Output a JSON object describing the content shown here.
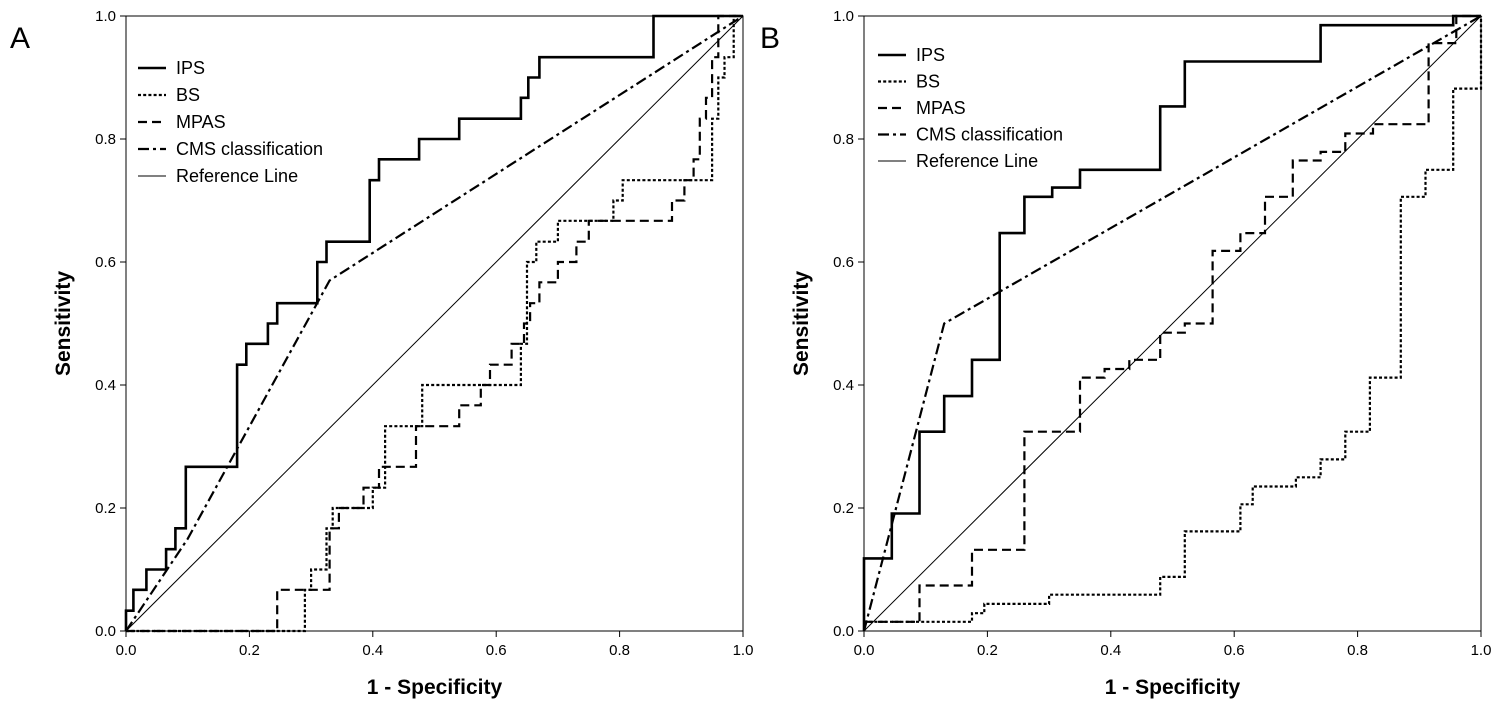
{
  "chart_data": [
    {
      "type": "line",
      "panel_label": "A",
      "xlabel": "1 - Specificity",
      "ylabel": "Sensitivity",
      "xlim": [
        0,
        1
      ],
      "ylim": [
        0,
        1
      ],
      "xticks": [
        "0.0",
        "0.2",
        "0.4",
        "0.6",
        "0.8",
        "1.0"
      ],
      "yticks": [
        "0.0",
        "0.2",
        "0.4",
        "0.6",
        "0.8",
        "1.0"
      ],
      "grid": false,
      "legend_position": "top-left",
      "series": [
        {
          "name": "IPS",
          "style": "solid-thick",
          "x": [
            0,
            0,
            0.012,
            0.012,
            0.033,
            0.033,
            0.065,
            0.065,
            0.08,
            0.08,
            0.097,
            0.097,
            0.18,
            0.18,
            0.195,
            0.195,
            0.23,
            0.23,
            0.245,
            0.245,
            0.31,
            0.31,
            0.325,
            0.325,
            0.395,
            0.395,
            0.41,
            0.41,
            0.475,
            0.475,
            0.54,
            0.54,
            0.64,
            0.64,
            0.652,
            0.652,
            0.67,
            0.67,
            0.855,
            0.855,
            1
          ],
          "y": [
            0,
            0.033,
            0.033,
            0.067,
            0.067,
            0.1,
            0.1,
            0.133,
            0.133,
            0.167,
            0.167,
            0.267,
            0.267,
            0.433,
            0.433,
            0.467,
            0.467,
            0.5,
            0.5,
            0.533,
            0.533,
            0.6,
            0.6,
            0.633,
            0.633,
            0.733,
            0.733,
            0.767,
            0.767,
            0.8,
            0.8,
            0.833,
            0.833,
            0.867,
            0.867,
            0.9,
            0.9,
            0.933,
            0.933,
            1,
            1
          ]
        },
        {
          "name": "BS",
          "style": "dotted",
          "x": [
            0,
            0.29,
            0.29,
            0.3,
            0.3,
            0.325,
            0.325,
            0.335,
            0.335,
            0.4,
            0.4,
            0.42,
            0.42,
            0.48,
            0.48,
            0.64,
            0.64,
            0.65,
            0.65,
            0.665,
            0.665,
            0.7,
            0.7,
            0.79,
            0.79,
            0.805,
            0.805,
            0.82,
            0.82,
            0.95,
            0.95,
            0.96,
            0.96,
            0.97,
            0.97,
            0.985,
            0.985,
            1
          ],
          "y": [
            0,
            0,
            0.067,
            0.067,
            0.1,
            0.1,
            0.167,
            0.167,
            0.2,
            0.2,
            0.233,
            0.233,
            0.333,
            0.333,
            0.4,
            0.4,
            0.467,
            0.467,
            0.6,
            0.6,
            0.633,
            0.633,
            0.667,
            0.667,
            0.7,
            0.7,
            0.733,
            0.733,
            0.733,
            0.733,
            0.833,
            0.833,
            0.9,
            0.9,
            0.933,
            0.933,
            1,
            1
          ]
        },
        {
          "name": "MPAS",
          "style": "dashed",
          "x": [
            0,
            0.245,
            0.245,
            0.33,
            0.33,
            0.345,
            0.345,
            0.385,
            0.385,
            0.41,
            0.41,
            0.47,
            0.47,
            0.54,
            0.54,
            0.575,
            0.575,
            0.59,
            0.59,
            0.625,
            0.625,
            0.645,
            0.645,
            0.655,
            0.655,
            0.67,
            0.67,
            0.7,
            0.7,
            0.73,
            0.73,
            0.75,
            0.75,
            0.77,
            0.77,
            0.8,
            0.8,
            0.885,
            0.885,
            0.905,
            0.905,
            0.92,
            0.92,
            0.93,
            0.93,
            0.94,
            0.94,
            0.95,
            0.95,
            0.96,
            0.96,
            1
          ],
          "y": [
            0,
            0,
            0.067,
            0.067,
            0.167,
            0.167,
            0.2,
            0.2,
            0.233,
            0.233,
            0.267,
            0.267,
            0.333,
            0.333,
            0.367,
            0.367,
            0.4,
            0.4,
            0.433,
            0.433,
            0.467,
            0.467,
            0.5,
            0.5,
            0.533,
            0.533,
            0.567,
            0.567,
            0.6,
            0.6,
            0.633,
            0.633,
            0.667,
            0.667,
            0.667,
            0.667,
            0.667,
            0.667,
            0.7,
            0.7,
            0.733,
            0.733,
            0.767,
            0.767,
            0.833,
            0.833,
            0.867,
            0.867,
            0.933,
            0.933,
            1,
            1
          ]
        },
        {
          "name": "CMS classification",
          "style": "dash-dot",
          "x": [
            0,
            0.1,
            0.33,
            1
          ],
          "y": [
            0,
            0.15,
            0.57,
            1
          ]
        },
        {
          "name": "Reference Line",
          "style": "thin",
          "x": [
            0,
            1
          ],
          "y": [
            0,
            1
          ]
        }
      ]
    },
    {
      "type": "line",
      "panel_label": "B",
      "xlabel": "1 - Specificity",
      "ylabel": "Sensitivity",
      "xlim": [
        0,
        1
      ],
      "ylim": [
        0,
        1
      ],
      "xticks": [
        "0.0",
        "0.2",
        "0.4",
        "0.6",
        "0.8",
        "1.0"
      ],
      "yticks": [
        "0.0",
        "0.2",
        "0.4",
        "0.6",
        "0.8",
        "1.0"
      ],
      "grid": false,
      "legend_position": "top-left",
      "series": [
        {
          "name": "IPS",
          "style": "solid-thick",
          "x": [
            0,
            0,
            0.045,
            0.045,
            0.09,
            0.09,
            0.13,
            0.13,
            0.175,
            0.175,
            0.22,
            0.22,
            0.26,
            0.26,
            0.305,
            0.305,
            0.35,
            0.35,
            0.48,
            0.48,
            0.52,
            0.52,
            0.74,
            0.74,
            0.955,
            0.955,
            1
          ],
          "y": [
            0,
            0.118,
            0.118,
            0.191,
            0.191,
            0.324,
            0.324,
            0.382,
            0.382,
            0.441,
            0.441,
            0.647,
            0.647,
            0.706,
            0.706,
            0.721,
            0.721,
            0.75,
            0.75,
            0.853,
            0.853,
            0.926,
            0.926,
            0.985,
            0.985,
            1,
            1
          ]
        },
        {
          "name": "BS",
          "style": "dotted",
          "x": [
            0,
            0.13,
            0.13,
            0.175,
            0.175,
            0.195,
            0.195,
            0.22,
            0.22,
            0.3,
            0.3,
            0.35,
            0.35,
            0.48,
            0.48,
            0.52,
            0.52,
            0.565,
            0.565,
            0.61,
            0.61,
            0.63,
            0.63,
            0.7,
            0.7,
            0.74,
            0.74,
            0.78,
            0.78,
            0.82,
            0.82,
            0.83,
            0.83,
            0.87,
            0.87,
            0.91,
            0.91,
            0.955,
            0.955,
            1,
            1
          ],
          "y": [
            0.015,
            0.015,
            0.015,
            0.015,
            0.029,
            0.029,
            0.044,
            0.044,
            0.044,
            0.044,
            0.059,
            0.059,
            0.059,
            0.059,
            0.088,
            0.088,
            0.162,
            0.162,
            0.162,
            0.162,
            0.206,
            0.206,
            0.235,
            0.235,
            0.25,
            0.25,
            0.279,
            0.279,
            0.324,
            0.324,
            0.412,
            0.412,
            0.412,
            0.412,
            0.706,
            0.706,
            0.75,
            0.75,
            0.882,
            0.882,
            1
          ]
        },
        {
          "name": "MPAS",
          "style": "dashed",
          "x": [
            0,
            0.09,
            0.09,
            0.175,
            0.175,
            0.26,
            0.26,
            0.35,
            0.35,
            0.39,
            0.39,
            0.43,
            0.43,
            0.48,
            0.48,
            0.52,
            0.52,
            0.565,
            0.565,
            0.61,
            0.61,
            0.65,
            0.65,
            0.695,
            0.695,
            0.74,
            0.74,
            0.78,
            0.78,
            0.825,
            0.825,
            0.915,
            0.915,
            0.96,
            0.96,
            1
          ],
          "y": [
            0.015,
            0.015,
            0.074,
            0.074,
            0.132,
            0.132,
            0.324,
            0.324,
            0.412,
            0.412,
            0.426,
            0.426,
            0.441,
            0.441,
            0.485,
            0.485,
            0.5,
            0.5,
            0.618,
            0.618,
            0.647,
            0.647,
            0.706,
            0.706,
            0.765,
            0.765,
            0.779,
            0.779,
            0.809,
            0.809,
            0.824,
            0.824,
            0.956,
            0.956,
            1,
            1
          ]
        },
        {
          "name": "CMS classification",
          "style": "dash-dot",
          "x": [
            0,
            0.13,
            1
          ],
          "y": [
            0,
            0.5,
            1
          ]
        },
        {
          "name": "Reference Line",
          "style": "thin",
          "x": [
            0,
            1
          ],
          "y": [
            0,
            1
          ]
        }
      ]
    }
  ]
}
